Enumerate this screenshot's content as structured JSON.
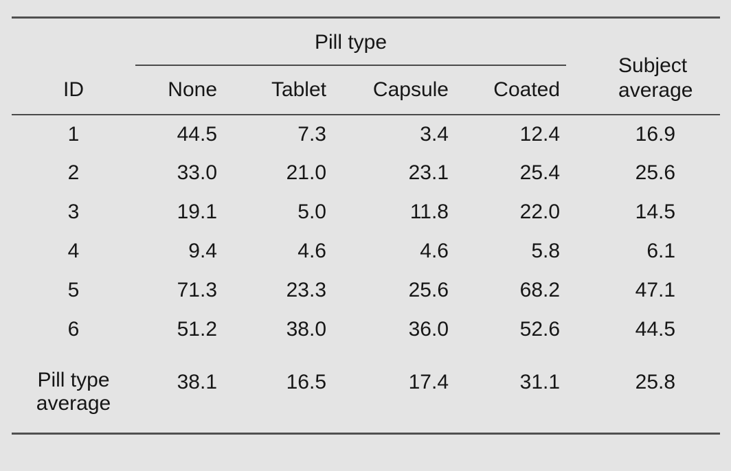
{
  "colors": {
    "background": "#e4e4e4",
    "rule_heavy": "#505050",
    "rule_light": "#4a4a4a",
    "text": "#161616"
  },
  "table": {
    "group_header": "Pill type",
    "id_header": "ID",
    "pill_columns": [
      "None",
      "Tablet",
      "Capsule",
      "Coated"
    ],
    "subject_average_label": "Subject\naverage",
    "rows": [
      {
        "id": "1",
        "values": [
          "44.5",
          "7.3",
          "3.4",
          "12.4"
        ],
        "subject_average": "16.9"
      },
      {
        "id": "2",
        "values": [
          "33.0",
          "21.0",
          "23.1",
          "25.4"
        ],
        "subject_average": "25.6"
      },
      {
        "id": "3",
        "values": [
          "19.1",
          "5.0",
          "11.8",
          "22.0"
        ],
        "subject_average": "14.5"
      },
      {
        "id": "4",
        "values": [
          "9.4",
          "4.6",
          "4.6",
          "5.8"
        ],
        "subject_average": "6.1"
      },
      {
        "id": "5",
        "values": [
          "71.3",
          "23.3",
          "25.6",
          "68.2"
        ],
        "subject_average": "47.1"
      },
      {
        "id": "6",
        "values": [
          "51.2",
          "38.0",
          "36.0",
          "52.6"
        ],
        "subject_average": "44.5"
      }
    ],
    "footer": {
      "label": "Pill type\naverage",
      "values": [
        "38.1",
        "16.5",
        "17.4",
        "31.1"
      ],
      "subject_average": "25.8"
    }
  },
  "chart_data": {
    "type": "table",
    "title": "",
    "row_header": "ID",
    "column_group_label": "Pill type",
    "columns": [
      "None",
      "Tablet",
      "Capsule",
      "Coated",
      "Subject average"
    ],
    "rows": [
      {
        "id": 1,
        "None": 44.5,
        "Tablet": 7.3,
        "Capsule": 3.4,
        "Coated": 12.4,
        "Subject average": 16.9
      },
      {
        "id": 2,
        "None": 33.0,
        "Tablet": 21.0,
        "Capsule": 23.1,
        "Coated": 25.4,
        "Subject average": 25.6
      },
      {
        "id": 3,
        "None": 19.1,
        "Tablet": 5.0,
        "Capsule": 11.8,
        "Coated": 22.0,
        "Subject average": 14.5
      },
      {
        "id": 4,
        "None": 9.4,
        "Tablet": 4.6,
        "Capsule": 4.6,
        "Coated": 5.8,
        "Subject average": 6.1
      },
      {
        "id": 5,
        "None": 71.3,
        "Tablet": 23.3,
        "Capsule": 25.6,
        "Coated": 68.2,
        "Subject average": 47.1
      },
      {
        "id": 6,
        "None": 51.2,
        "Tablet": 38.0,
        "Capsule": 36.0,
        "Coated": 52.6,
        "Subject average": 44.5
      }
    ],
    "footer_row": {
      "label": "Pill type average",
      "None": 38.1,
      "Tablet": 16.5,
      "Capsule": 17.4,
      "Coated": 31.1,
      "Subject average": 25.8
    }
  }
}
